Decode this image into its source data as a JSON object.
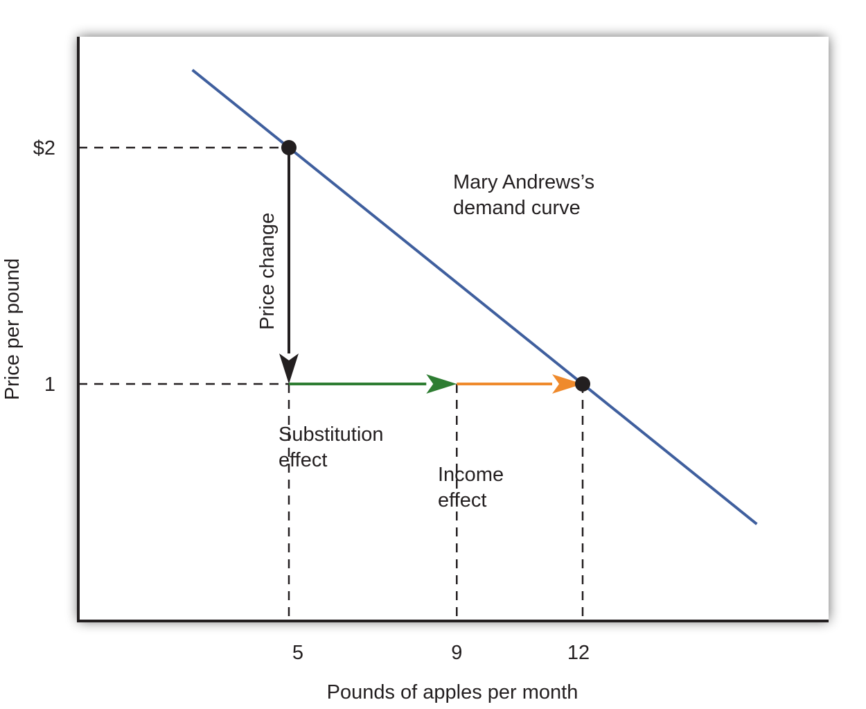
{
  "chart_data": {
    "type": "line",
    "xlabel": "Pounds of apples per month",
    "ylabel": "Price per pound",
    "x_ticks": [
      {
        "value": 5,
        "label": "5"
      },
      {
        "value": 9,
        "label": "9"
      },
      {
        "value": 12,
        "label": "12"
      }
    ],
    "y_ticks": [
      {
        "value": 2,
        "label": "$2"
      },
      {
        "value": 1,
        "label": "1"
      }
    ],
    "demand_curve": {
      "label_line1": "Mary Andrews’s",
      "label_line2": "demand curve",
      "color": "#3f5f9e",
      "points": [
        {
          "x": 5,
          "y": 2
        },
        {
          "x": 12,
          "y": 1
        }
      ]
    },
    "points": [
      {
        "x": 5,
        "y": 2
      },
      {
        "x": 12,
        "y": 1
      }
    ],
    "arrows": [
      {
        "name": "price-change",
        "label": "Price change",
        "from": {
          "x": 5,
          "y": 2
        },
        "to": {
          "x": 5,
          "y": 1
        },
        "color": "#231f20"
      },
      {
        "name": "substitution-effect",
        "label_line1": "Substitution",
        "label_line2": "effect",
        "from": {
          "x": 5,
          "y": 1
        },
        "to": {
          "x": 9,
          "y": 1
        },
        "color": "#2e7d32"
      },
      {
        "name": "income-effect",
        "label_line1": "Income",
        "label_line2": "effect",
        "from": {
          "x": 9,
          "y": 1
        },
        "to": {
          "x": 12,
          "y": 1
        },
        "color": "#ef8a2c"
      }
    ],
    "grid": false,
    "legend": "none"
  }
}
